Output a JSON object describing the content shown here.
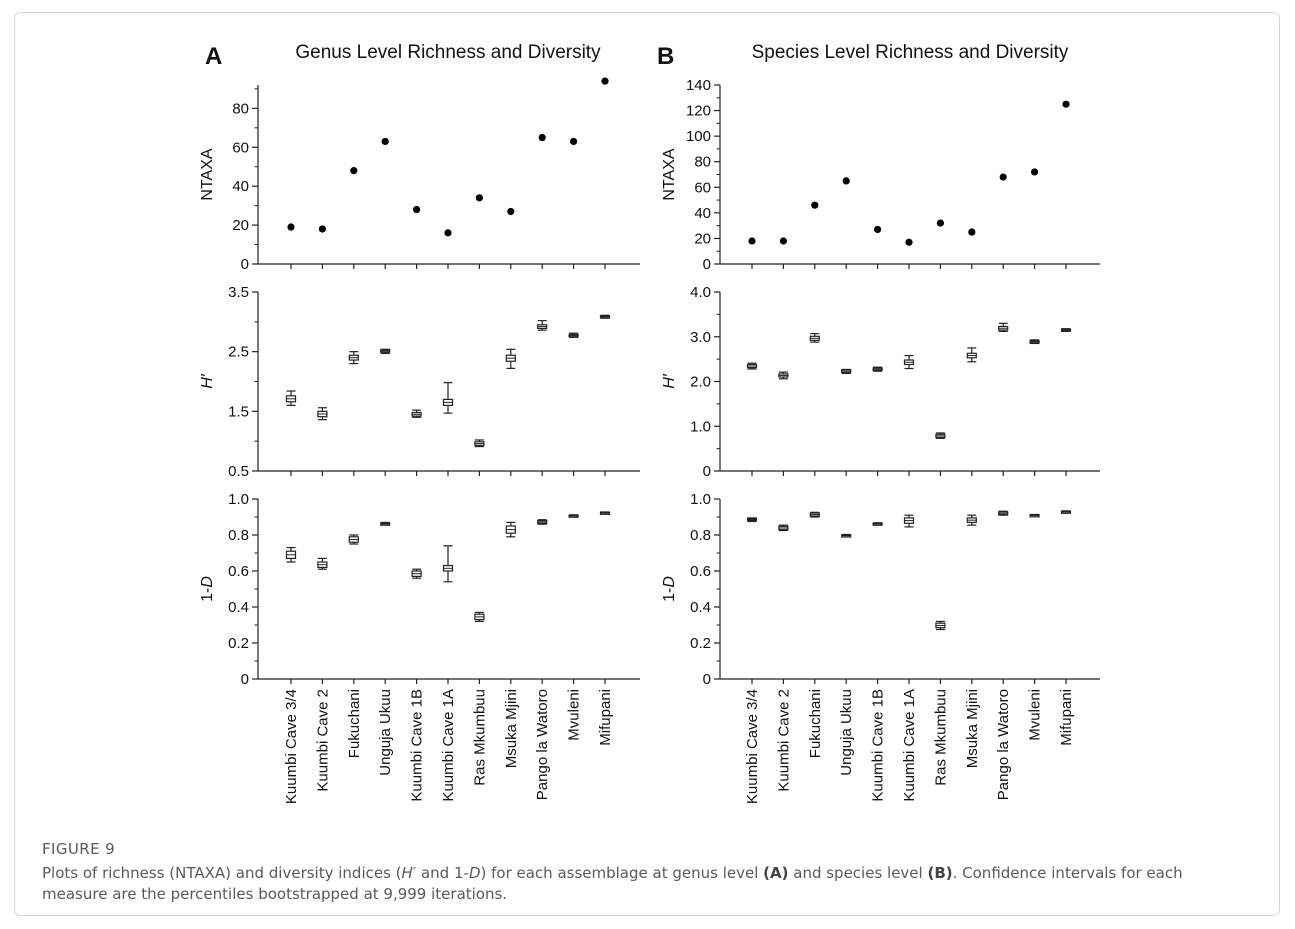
{
  "figure_label": "FIGURE 9",
  "caption": {
    "parts": [
      {
        "t": "Plots of richness (NTAXA) and diversity indices ("
      },
      {
        "t": "H′",
        "style": "i"
      },
      {
        "t": " and 1-"
      },
      {
        "t": "D",
        "style": "i"
      },
      {
        "t": ") for each assemblage at genus level "
      },
      {
        "t": "(A)",
        "style": "b"
      },
      {
        "t": " and species level "
      },
      {
        "t": "(B)",
        "style": "b"
      },
      {
        "t": ". Confidence intervals for each measure are the percentiles bootstrapped at 9,999 iterations."
      }
    ]
  },
  "chart_data": [
    {
      "panel": "A",
      "title": "Genus Level Richness and Diversity",
      "sites": [
        "Kuumbi Cave 3/4",
        "Kuumbi Cave 2",
        "Fukuchani",
        "Unguja Ukuu",
        "Kuumbi Cave 1B",
        "Kuumbi Cave 1A",
        "Ras Mkumbuu",
        "Msuka Mjini",
        "Pango la Watoro",
        "Mvuleni",
        "Mifupani"
      ],
      "plots": [
        {
          "type": "scatter",
          "ylabel": "NTAXA",
          "ylim": [
            0,
            92
          ],
          "ticks": [
            0,
            20,
            40,
            60,
            80
          ],
          "tick_labels": [
            "0",
            "20",
            "40",
            "60",
            "80"
          ],
          "values": [
            19,
            18,
            48,
            63,
            28,
            16,
            34,
            27,
            65,
            63,
            94
          ]
        },
        {
          "type": "box",
          "ylabel": "H′",
          "ylim": [
            0.5,
            3.5
          ],
          "ticks": [
            0.5,
            1.5,
            2.5,
            3.5
          ],
          "tick_labels": [
            "0.5",
            "1.5",
            "2.5",
            "3.5"
          ],
          "values": [
            {
              "lo": 1.6,
              "q1": 1.66,
              "q3": 1.76,
              "hi": 1.84
            },
            {
              "lo": 1.36,
              "q1": 1.41,
              "q3": 1.5,
              "hi": 1.56
            },
            {
              "lo": 2.3,
              "q1": 2.36,
              "q3": 2.44,
              "hi": 2.5
            },
            {
              "lo": 2.47,
              "q1": 2.49,
              "q3": 2.53,
              "hi": 2.54
            },
            {
              "lo": 1.4,
              "q1": 1.42,
              "q3": 1.48,
              "hi": 1.52
            },
            {
              "lo": 1.47,
              "q1": 1.6,
              "q3": 1.7,
              "hi": 1.98
            },
            {
              "lo": 0.91,
              "q1": 0.93,
              "q3": 0.99,
              "hi": 1.02
            },
            {
              "lo": 2.22,
              "q1": 2.34,
              "q3": 2.44,
              "hi": 2.54
            },
            {
              "lo": 2.86,
              "q1": 2.89,
              "q3": 2.95,
              "hi": 3.02
            },
            {
              "lo": 2.74,
              "q1": 2.75,
              "q3": 2.79,
              "hi": 2.81
            },
            {
              "lo": 3.06,
              "q1": 3.07,
              "q3": 3.1,
              "hi": 3.11
            }
          ]
        },
        {
          "type": "box",
          "ylabel": "1-D",
          "ylim": [
            0,
            1.0
          ],
          "ticks": [
            0,
            0.2,
            0.4,
            0.6,
            0.8,
            1.0
          ],
          "tick_labels": [
            "0",
            "0.2",
            "0.4",
            "0.6",
            "0.8",
            "1.0"
          ],
          "values": [
            {
              "lo": 0.65,
              "q1": 0.67,
              "q3": 0.71,
              "hi": 0.73
            },
            {
              "lo": 0.61,
              "q1": 0.62,
              "q3": 0.65,
              "hi": 0.67
            },
            {
              "lo": 0.75,
              "q1": 0.76,
              "q3": 0.79,
              "hi": 0.8
            },
            {
              "lo": 0.855,
              "q1": 0.858,
              "q3": 0.866,
              "hi": 0.87
            },
            {
              "lo": 0.56,
              "q1": 0.57,
              "q3": 0.6,
              "hi": 0.61
            },
            {
              "lo": 0.54,
              "q1": 0.6,
              "q3": 0.63,
              "hi": 0.74
            },
            {
              "lo": 0.32,
              "q1": 0.33,
              "q3": 0.36,
              "hi": 0.37
            },
            {
              "lo": 0.79,
              "q1": 0.81,
              "q3": 0.85,
              "hi": 0.87
            },
            {
              "lo": 0.86,
              "q1": 0.865,
              "q3": 0.88,
              "hi": 0.885
            },
            {
              "lo": 0.9,
              "q1": 0.902,
              "q3": 0.91,
              "hi": 0.912
            },
            {
              "lo": 0.916,
              "q1": 0.918,
              "q3": 0.926,
              "hi": 0.928
            }
          ]
        }
      ]
    },
    {
      "panel": "B",
      "title": "Species Level Richness and Diversity",
      "sites": [
        "Kuumbi Cave 3/4",
        "Kuumbi Cave 2",
        "Fukuchani",
        "Unguja Ukuu",
        "Kuumbi Cave 1B",
        "Kuumbi Cave 1A",
        "Ras Mkumbuu",
        "Msuka Mjini",
        "Pango la Watoro",
        "Mvuleni",
        "Mifupani"
      ],
      "plots": [
        {
          "type": "scatter",
          "ylabel": "NTAXA",
          "ylim": [
            0,
            140
          ],
          "ticks": [
            0,
            20,
            40,
            60,
            80,
            100,
            120,
            140
          ],
          "tick_labels": [
            "0",
            "20",
            "40",
            "60",
            "80",
            "100",
            "120",
            "140"
          ],
          "values": [
            18,
            18,
            46,
            65,
            27,
            17,
            32,
            25,
            68,
            72,
            125
          ]
        },
        {
          "type": "box",
          "ylabel": "H′",
          "ylim": [
            0,
            4.0
          ],
          "ticks": [
            0,
            1,
            2,
            3,
            4
          ],
          "tick_labels": [
            "0",
            "1.0",
            "2.0",
            "3.0",
            "4.0"
          ],
          "values": [
            {
              "lo": 2.28,
              "q1": 2.31,
              "q3": 2.38,
              "hi": 2.41
            },
            {
              "lo": 2.06,
              "q1": 2.1,
              "q3": 2.17,
              "hi": 2.21
            },
            {
              "lo": 2.88,
              "q1": 2.92,
              "q3": 3.01,
              "hi": 3.07
            },
            {
              "lo": 2.18,
              "q1": 2.2,
              "q3": 2.26,
              "hi": 2.27
            },
            {
              "lo": 2.23,
              "q1": 2.25,
              "q3": 2.3,
              "hi": 2.32
            },
            {
              "lo": 2.29,
              "q1": 2.38,
              "q3": 2.48,
              "hi": 2.58
            },
            {
              "lo": 0.73,
              "q1": 0.75,
              "q3": 0.82,
              "hi": 0.85
            },
            {
              "lo": 2.44,
              "q1": 2.53,
              "q3": 2.63,
              "hi": 2.75
            },
            {
              "lo": 3.12,
              "q1": 3.15,
              "q3": 3.23,
              "hi": 3.3
            },
            {
              "lo": 2.85,
              "q1": 2.86,
              "q3": 2.91,
              "hi": 2.93
            },
            {
              "lo": 3.12,
              "q1": 3.13,
              "q3": 3.17,
              "hi": 3.18
            }
          ]
        },
        {
          "type": "box",
          "ylabel": "1-D",
          "ylim": [
            0,
            1.0
          ],
          "ticks": [
            0,
            0.2,
            0.4,
            0.6,
            0.8,
            1.0
          ],
          "tick_labels": [
            "0",
            "0.2",
            "0.4",
            "0.6",
            "0.8",
            "1.0"
          ],
          "values": [
            {
              "lo": 0.875,
              "q1": 0.88,
              "q3": 0.892,
              "hi": 0.895
            },
            {
              "lo": 0.825,
              "q1": 0.83,
              "q3": 0.848,
              "hi": 0.855
            },
            {
              "lo": 0.9,
              "q1": 0.905,
              "q3": 0.922,
              "hi": 0.926
            },
            {
              "lo": 0.79,
              "q1": 0.792,
              "q3": 0.8,
              "hi": 0.803
            },
            {
              "lo": 0.855,
              "q1": 0.858,
              "q3": 0.866,
              "hi": 0.868
            },
            {
              "lo": 0.845,
              "q1": 0.865,
              "q3": 0.895,
              "hi": 0.91
            },
            {
              "lo": 0.275,
              "q1": 0.285,
              "q3": 0.31,
              "hi": 0.32
            },
            {
              "lo": 0.855,
              "q1": 0.87,
              "q3": 0.895,
              "hi": 0.91
            },
            {
              "lo": 0.91,
              "q1": 0.913,
              "q3": 0.928,
              "hi": 0.932
            },
            {
              "lo": 0.903,
              "q1": 0.905,
              "q3": 0.912,
              "hi": 0.914
            },
            {
              "lo": 0.922,
              "q1": 0.924,
              "q3": 0.932,
              "hi": 0.934
            }
          ]
        }
      ]
    }
  ]
}
